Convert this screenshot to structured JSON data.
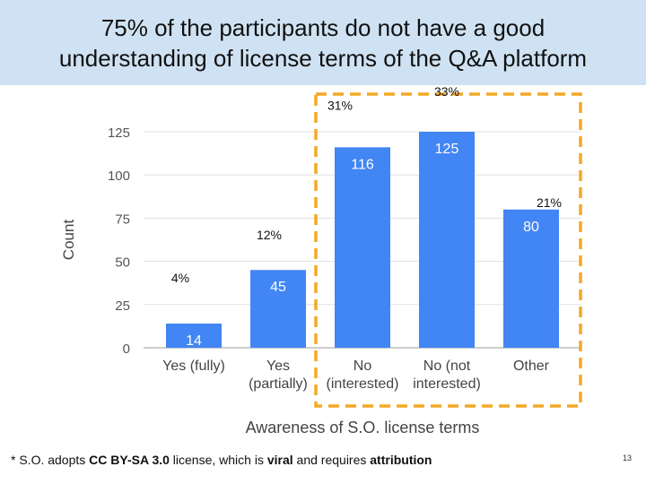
{
  "slide": {
    "title_line1": "75% of the participants do not have a good",
    "title_line2": "understanding of license terms of the Q&A platform",
    "page_number": "13"
  },
  "footnote": {
    "prefix": "* S.O. adopts ",
    "license": "CC BY-SA 3.0",
    "middle": " license, which is ",
    "viral": "viral",
    "and": " and requires ",
    "attribution": "attribution"
  },
  "colors": {
    "bar": "#4285f4",
    "highlight": "#f4a825",
    "grid": "#e0e0e0",
    "title_bg": "#cfe2f3"
  },
  "chart_data": {
    "type": "bar",
    "title": "",
    "xlabel": "Awareness of S.O. license terms",
    "ylabel": "Count",
    "ylim": [
      0,
      125
    ],
    "yticks": [
      0,
      25,
      50,
      75,
      100,
      125
    ],
    "grid": true,
    "categories": [
      [
        "Yes (fully)"
      ],
      [
        "Yes",
        "(partially)"
      ],
      [
        "No",
        "(interested)"
      ],
      [
        "No (not",
        "interested)"
      ],
      [
        "Other"
      ]
    ],
    "values": [
      14,
      45,
      116,
      125,
      80
    ],
    "percent_labels": [
      "4%",
      "12%",
      "31%",
      "33%",
      "21%"
    ],
    "highlighted_categories": [
      2,
      3,
      4
    ]
  }
}
